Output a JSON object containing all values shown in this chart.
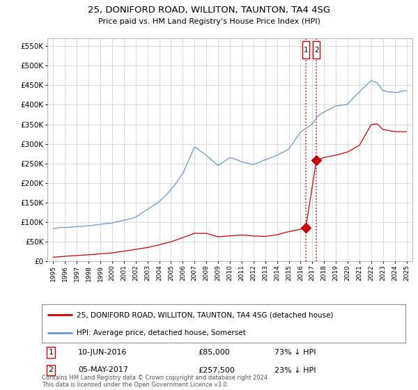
{
  "title": "25, DONIFORD ROAD, WILLITON, TAUNTON, TA4 4SG",
  "subtitle": "Price paid vs. HM Land Registry's House Price Index (HPI)",
  "xlim_year": [
    1995,
    2025
  ],
  "ylim": [
    0,
    570000
  ],
  "yticks": [
    0,
    50000,
    100000,
    150000,
    200000,
    250000,
    300000,
    350000,
    400000,
    450000,
    500000,
    550000
  ],
  "ytick_labels": [
    "£0",
    "£50K",
    "£100K",
    "£150K",
    "£200K",
    "£250K",
    "£300K",
    "£350K",
    "£400K",
    "£450K",
    "£500K",
    "£550K"
  ],
  "transaction1": {
    "date": "10-JUN-2016",
    "price": "£85,000",
    "pct": "73% ↓ HPI",
    "label": "1"
  },
  "transaction2": {
    "date": "05-MAY-2017",
    "price": "£257,500",
    "pct": "23% ↓ HPI",
    "label": "2"
  },
  "transaction1_x": 2016.44,
  "transaction2_x": 2017.34,
  "transaction1_y": 85000,
  "transaction2_y": 257500,
  "hpi_color": "#6699cc",
  "price_color": "#cc0000",
  "grid_color": "#cccccc",
  "background_color": "#ffffff",
  "legend_label_price": "25, DONIFORD ROAD, WILLITON, TAUNTON, TA4 4SG (detached house)",
  "legend_label_hpi": "HPI: Average price, detached house, Somerset",
  "footer": "Contains HM Land Registry data © Crown copyright and database right 2024.\nThis data is licensed under the Open Government Licence v3.0.",
  "xticks": [
    1995,
    1996,
    1997,
    1998,
    1999,
    2000,
    2001,
    2002,
    2003,
    2004,
    2005,
    2006,
    2007,
    2008,
    2009,
    2010,
    2011,
    2012,
    2013,
    2014,
    2015,
    2016,
    2017,
    2018,
    2019,
    2020,
    2021,
    2022,
    2023,
    2024,
    2025
  ],
  "hpi_anchors_x": [
    1995,
    2000,
    2002,
    2004,
    2005,
    2006,
    2007,
    2008,
    2009,
    2010,
    2011,
    2012,
    2013,
    2014,
    2015,
    2016,
    2016.5,
    2017,
    2017.5,
    2018,
    2019,
    2020,
    2021,
    2022,
    2022.5,
    2023,
    2024,
    2025
  ],
  "hpi_anchors_y": [
    83000,
    100000,
    115000,
    155000,
    185000,
    225000,
    295000,
    270000,
    245000,
    265000,
    255000,
    248000,
    260000,
    270000,
    285000,
    330000,
    340000,
    350000,
    370000,
    380000,
    395000,
    400000,
    430000,
    460000,
    455000,
    435000,
    430000,
    435000
  ],
  "price_anchors_x": [
    1995,
    1997,
    2000,
    2003,
    2005,
    2007,
    2008,
    2009,
    2010,
    2011,
    2012,
    2013,
    2014,
    2015,
    2016.0,
    2016.44,
    2017.34,
    2018,
    2019,
    2020,
    2021,
    2022,
    2022.5,
    2023,
    2024,
    2025
  ],
  "price_anchors_y": [
    10000,
    15000,
    22000,
    35000,
    50000,
    72000,
    72000,
    63000,
    66000,
    68000,
    65000,
    64000,
    68000,
    76000,
    82000,
    85000,
    257500,
    265000,
    270000,
    278000,
    295000,
    348000,
    350000,
    335000,
    330000,
    330000
  ]
}
